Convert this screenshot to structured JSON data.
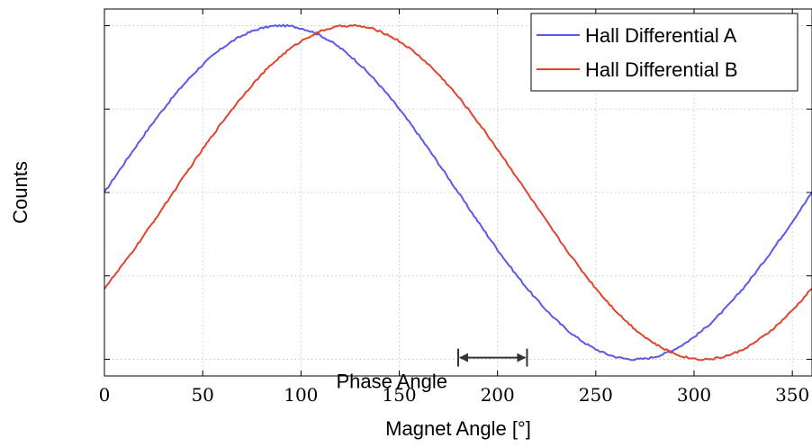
{
  "chart_data": {
    "type": "line",
    "xlabel": "Magnet Angle [°]",
    "ylabel": "Counts",
    "xlim": [
      0,
      360
    ],
    "ylim": [
      -1.1,
      1.1
    ],
    "xticks": [
      0,
      50,
      100,
      150,
      200,
      250,
      300,
      350
    ],
    "xtick_labels": [
      "0",
      "50",
      "100",
      "150",
      "200",
      "250",
      "300",
      "350"
    ],
    "yticks": [
      -1,
      -0.5,
      0,
      0.5,
      1
    ],
    "grid": true,
    "legend_position": "top-right",
    "series": [
      {
        "name": "Hall Differential A",
        "color": "#5a5ae6",
        "amplitude": 1.0,
        "phase_deg": 0,
        "offset": 0
      },
      {
        "name": "Hall Differential B",
        "color": "#e0442c",
        "amplitude": 1.0,
        "phase_deg": 35,
        "offset": 0
      }
    ],
    "annotations": [
      {
        "type": "double-arrow",
        "x_start": 180,
        "x_end": 215,
        "y": -0.99,
        "label": "Phase Angle"
      }
    ]
  }
}
